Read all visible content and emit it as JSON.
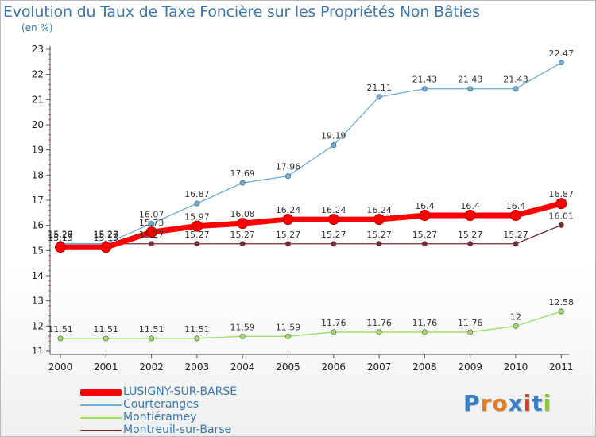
{
  "title": "Evolution du Taux de Taxe Foncière sur les Propriétés Non Bâties",
  "subtitle": "(en %)",
  "logo": "Proxiti",
  "chart_data": {
    "type": "line",
    "title": "Evolution du Taux de Taxe Foncière sur les Propriétés Non Bâties",
    "ylabel": "(en %)",
    "xlabel": "",
    "x": [
      "2000",
      "2001",
      "2002",
      "2003",
      "2004",
      "2005",
      "2006",
      "2007",
      "2008",
      "2009",
      "2010",
      "2011"
    ],
    "ylim": [
      11,
      23
    ],
    "yticks": [
      11,
      12,
      13,
      14,
      15,
      16,
      17,
      18,
      19,
      20,
      21,
      22,
      23
    ],
    "grid": false,
    "legend_position": "bottom-left",
    "series": [
      {
        "name": "LUSIGNY-SUR-BARSE",
        "color": "#ff0000",
        "values": [
          15.13,
          15.13,
          15.73,
          15.97,
          16.08,
          16.24,
          16.24,
          16.24,
          16.4,
          16.4,
          16.4,
          16.87
        ],
        "labels": [
          "15.13",
          "15.13",
          "15.73",
          "15.97",
          "16.08",
          "16.24",
          "16.24",
          "16.24",
          "16.4",
          "16.4",
          "16.4",
          "16.87"
        ]
      },
      {
        "name": "Courteranges",
        "color": "#6aaddf",
        "values": [
          15.28,
          15.28,
          16.07,
          16.87,
          17.69,
          17.96,
          19.19,
          21.11,
          21.43,
          21.43,
          21.43,
          22.47
        ],
        "labels": [
          "15.28",
          "15.28",
          "16.07",
          "16.87",
          "17.69",
          "17.96",
          "19.19",
          "21.11",
          "21.43",
          "21.43",
          "21.43",
          "22.47"
        ]
      },
      {
        "name": "Montiéramey",
        "color": "#99e060",
        "values": [
          11.51,
          11.51,
          11.51,
          11.51,
          11.59,
          11.59,
          11.76,
          11.76,
          11.76,
          11.76,
          12,
          12.58
        ],
        "labels": [
          "11.51",
          "11.51",
          "11.51",
          "11.51",
          "11.59",
          "11.59",
          "11.76",
          "11.76",
          "11.76",
          "11.76",
          "12",
          "12.58"
        ]
      },
      {
        "name": "Montreuil-sur-Barse",
        "color": "#7a2a32",
        "values": [
          15.27,
          15.27,
          15.27,
          15.27,
          15.27,
          15.27,
          15.27,
          15.27,
          15.27,
          15.27,
          15.27,
          16.01
        ],
        "labels": [
          "15.27",
          "15.27",
          "15.27",
          "15.27",
          "15.27",
          "15.27",
          "15.27",
          "15.27",
          "15.27",
          "15.27",
          "15.27",
          "16.01"
        ]
      }
    ]
  }
}
